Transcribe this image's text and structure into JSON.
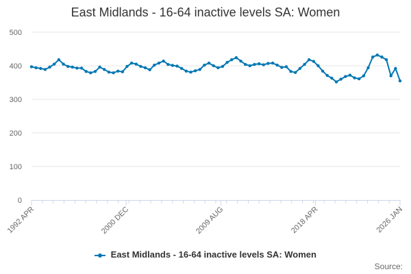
{
  "colors": {
    "series": "#0077b3",
    "grid": "#e6e6e6",
    "axis": "#ccd6eb",
    "text": "#333333",
    "tick_text": "#666666"
  },
  "legend": {
    "label": "East Midlands - 16-64 inactive levels SA: Women"
  },
  "source": {
    "label": "Source:"
  },
  "chart_data": {
    "type": "line",
    "title": "East Midlands - 16-64 inactive levels SA: Women",
    "xlabel": "",
    "ylabel": "",
    "ylim": [
      0,
      500
    ],
    "yticks": [
      0,
      100,
      200,
      300,
      400,
      500
    ],
    "x_tick_labels": [
      "1992 APR",
      "2000 DEC",
      "2009 AUG",
      "2018 APR",
      "2026 JAN"
    ],
    "x_tick_positions": [
      0,
      104,
      208,
      312,
      405
    ],
    "x_range": [
      0,
      405
    ],
    "grid": true,
    "legend_position": "bottom",
    "series": [
      {
        "name": "East Midlands - 16-64 inactive levels SA: Women",
        "x": [
          0,
          5,
          10,
          15,
          20,
          25,
          30,
          35,
          40,
          45,
          50,
          55,
          60,
          65,
          70,
          75,
          80,
          85,
          90,
          95,
          100,
          105,
          110,
          115,
          120,
          125,
          130,
          135,
          140,
          145,
          150,
          155,
          160,
          165,
          170,
          175,
          180,
          185,
          190,
          195,
          200,
          205,
          210,
          215,
          220,
          225,
          230,
          235,
          240,
          245,
          250,
          255,
          260,
          265,
          270,
          275,
          280,
          285,
          290,
          295,
          300,
          305,
          310,
          315,
          320,
          325,
          330,
          335,
          340,
          345,
          350,
          355,
          360,
          365,
          370,
          375,
          380,
          385,
          390,
          395,
          400,
          405
        ],
        "values": [
          397,
          394,
          392,
          389,
          396,
          405,
          418,
          405,
          398,
          396,
          393,
          393,
          383,
          379,
          383,
          396,
          389,
          381,
          379,
          384,
          382,
          398,
          408,
          405,
          398,
          394,
          388,
          402,
          408,
          414,
          404,
          401,
          399,
          392,
          384,
          381,
          385,
          389,
          402,
          408,
          400,
          394,
          398,
          410,
          418,
          424,
          414,
          404,
          400,
          404,
          406,
          403,
          407,
          408,
          402,
          395,
          397,
          383,
          380,
          392,
          404,
          418,
          413,
          400,
          384,
          371,
          363,
          352,
          360,
          368,
          372,
          364,
          361,
          370,
          394,
          426,
          432,
          426,
          418,
          370,
          392,
          355
        ]
      }
    ]
  }
}
